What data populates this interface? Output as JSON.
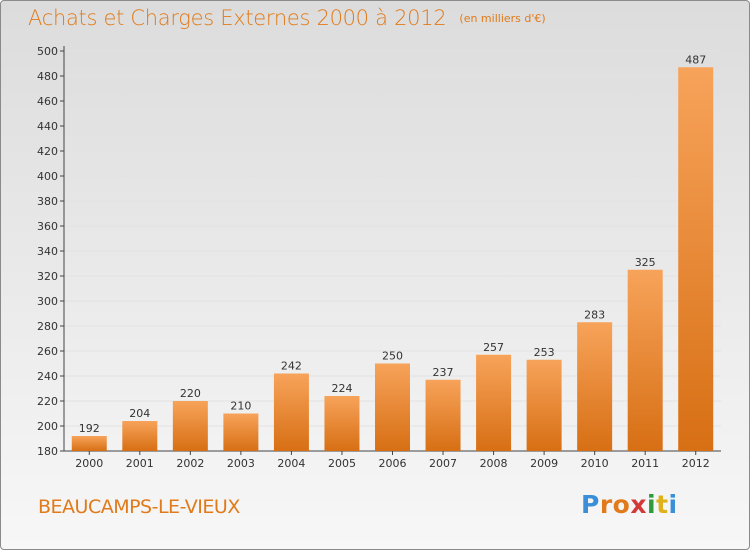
{
  "header": {
    "title": "Achats et Charges Externes 2000 à 2012",
    "subtitle": "(en milliers d'€)"
  },
  "footer": {
    "town": "BEAUCAMPS-LE-VIEUX",
    "logo_text": "Proxiti"
  },
  "colors": {
    "bar_top": "#f7a35a",
    "bar_bottom": "#d76f14",
    "title": "#e07a1a",
    "logo_letters": [
      "#3a8fd8",
      "#e07a1a",
      "#e07a1a",
      "#d23a3a",
      "#2f9a3a",
      "#e0b21a",
      "#3a8fd8"
    ]
  },
  "chart_data": {
    "type": "bar",
    "categories": [
      "2000",
      "2001",
      "2002",
      "2003",
      "2004",
      "2005",
      "2006",
      "2007",
      "2008",
      "2009",
      "2010",
      "2011",
      "2012"
    ],
    "values": [
      192,
      204,
      220,
      210,
      242,
      224,
      250,
      237,
      257,
      253,
      283,
      325,
      487
    ],
    "title": "Achats et Charges Externes 2000 à 2012",
    "subtitle": "(en milliers d'€)",
    "xlabel": "",
    "ylabel": "",
    "ylim": [
      180,
      500
    ],
    "yticks": [
      180,
      200,
      220,
      240,
      260,
      280,
      300,
      320,
      340,
      360,
      380,
      400,
      420,
      440,
      460,
      480,
      500
    ],
    "grid": true,
    "data_labels": true
  }
}
